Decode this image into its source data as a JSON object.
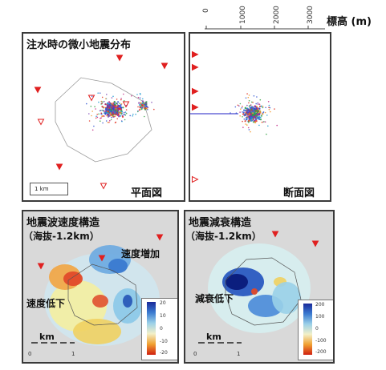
{
  "elevation_axis": {
    "ticks": [
      "0",
      "1000",
      "2000",
      "3000"
    ],
    "label": "標高 (m)"
  },
  "panels": {
    "plan": {
      "title": "注水時の微小地震分布",
      "corner_label": "平面図",
      "scale_label": "1 km"
    },
    "section": {
      "corner_label": "断面図"
    },
    "velocity": {
      "title": "地震波速度構造",
      "subtitle": "（海抜-1.2km）",
      "annotation_up": "速度増加",
      "annotation_down": "速度低下",
      "scale_unit": "km",
      "scale_ticks": [
        "0",
        "1"
      ],
      "colorbar_ticks": [
        "20",
        "10",
        "0",
        "-10",
        "-20"
      ]
    },
    "attenuation": {
      "title": "地震減衰構造",
      "subtitle": "（海抜-1.2km）",
      "annotation_down": "減衰低下",
      "scale_unit": "km",
      "scale_ticks": [
        "0",
        "1"
      ],
      "colorbar_ticks": [
        "200",
        "100",
        "0",
        "-100",
        "-200"
      ]
    }
  },
  "colors": {
    "border": "#3a3a3a",
    "station_marker": "#e02020",
    "map_background": "#d9d9d9"
  }
}
